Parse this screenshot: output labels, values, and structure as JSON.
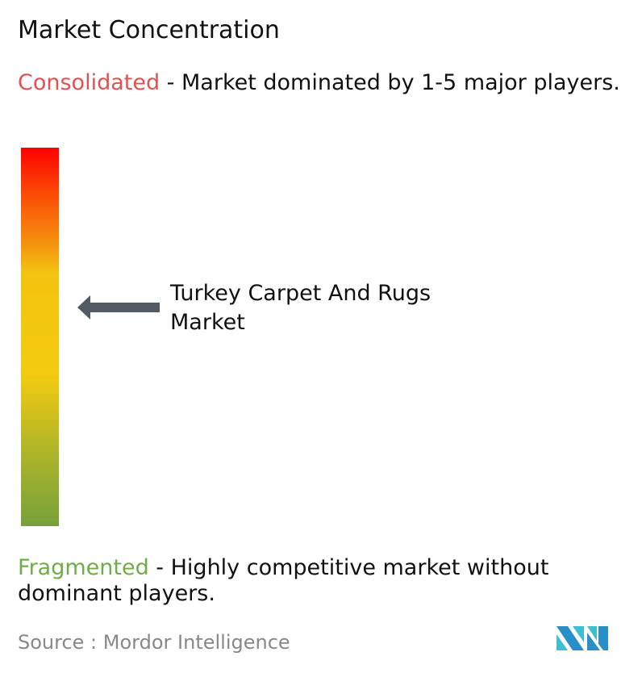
{
  "title": "Market Concentration",
  "consolidated": {
    "label": "Consolidated",
    "text": " - Market dominated by 1-5 major players.",
    "color": "#e05252"
  },
  "fragmented": {
    "label": "Fragmented",
    "text": " - Highly competitive market without dominant players.",
    "color": "#6fae46"
  },
  "market_label": "Turkey Carpet And Rugs Market",
  "source": "Source :  Mordor Intelligence",
  "logo": {
    "text": "Mordor Intelligence",
    "icon": "mordor-logo-icon"
  }
}
